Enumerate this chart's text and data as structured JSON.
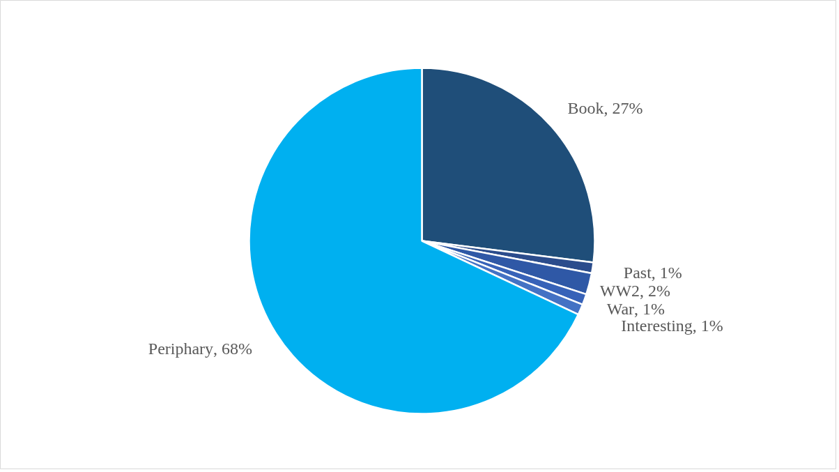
{
  "chart_data": {
    "type": "pie",
    "categories": [
      "Book",
      "Past",
      "WW2",
      "War",
      "Interesting",
      "Periphary"
    ],
    "values": [
      27,
      1,
      2,
      1,
      1,
      68
    ],
    "colors": [
      "#1f4e79",
      "#2b4c8c",
      "#2f58a6",
      "#3762b8",
      "#4472c4",
      "#00b0f0"
    ],
    "value_labels": [
      ", 27%",
      ", 1%",
      ", 2%",
      ", 1%",
      ", 1%",
      ", 68%"
    ]
  }
}
